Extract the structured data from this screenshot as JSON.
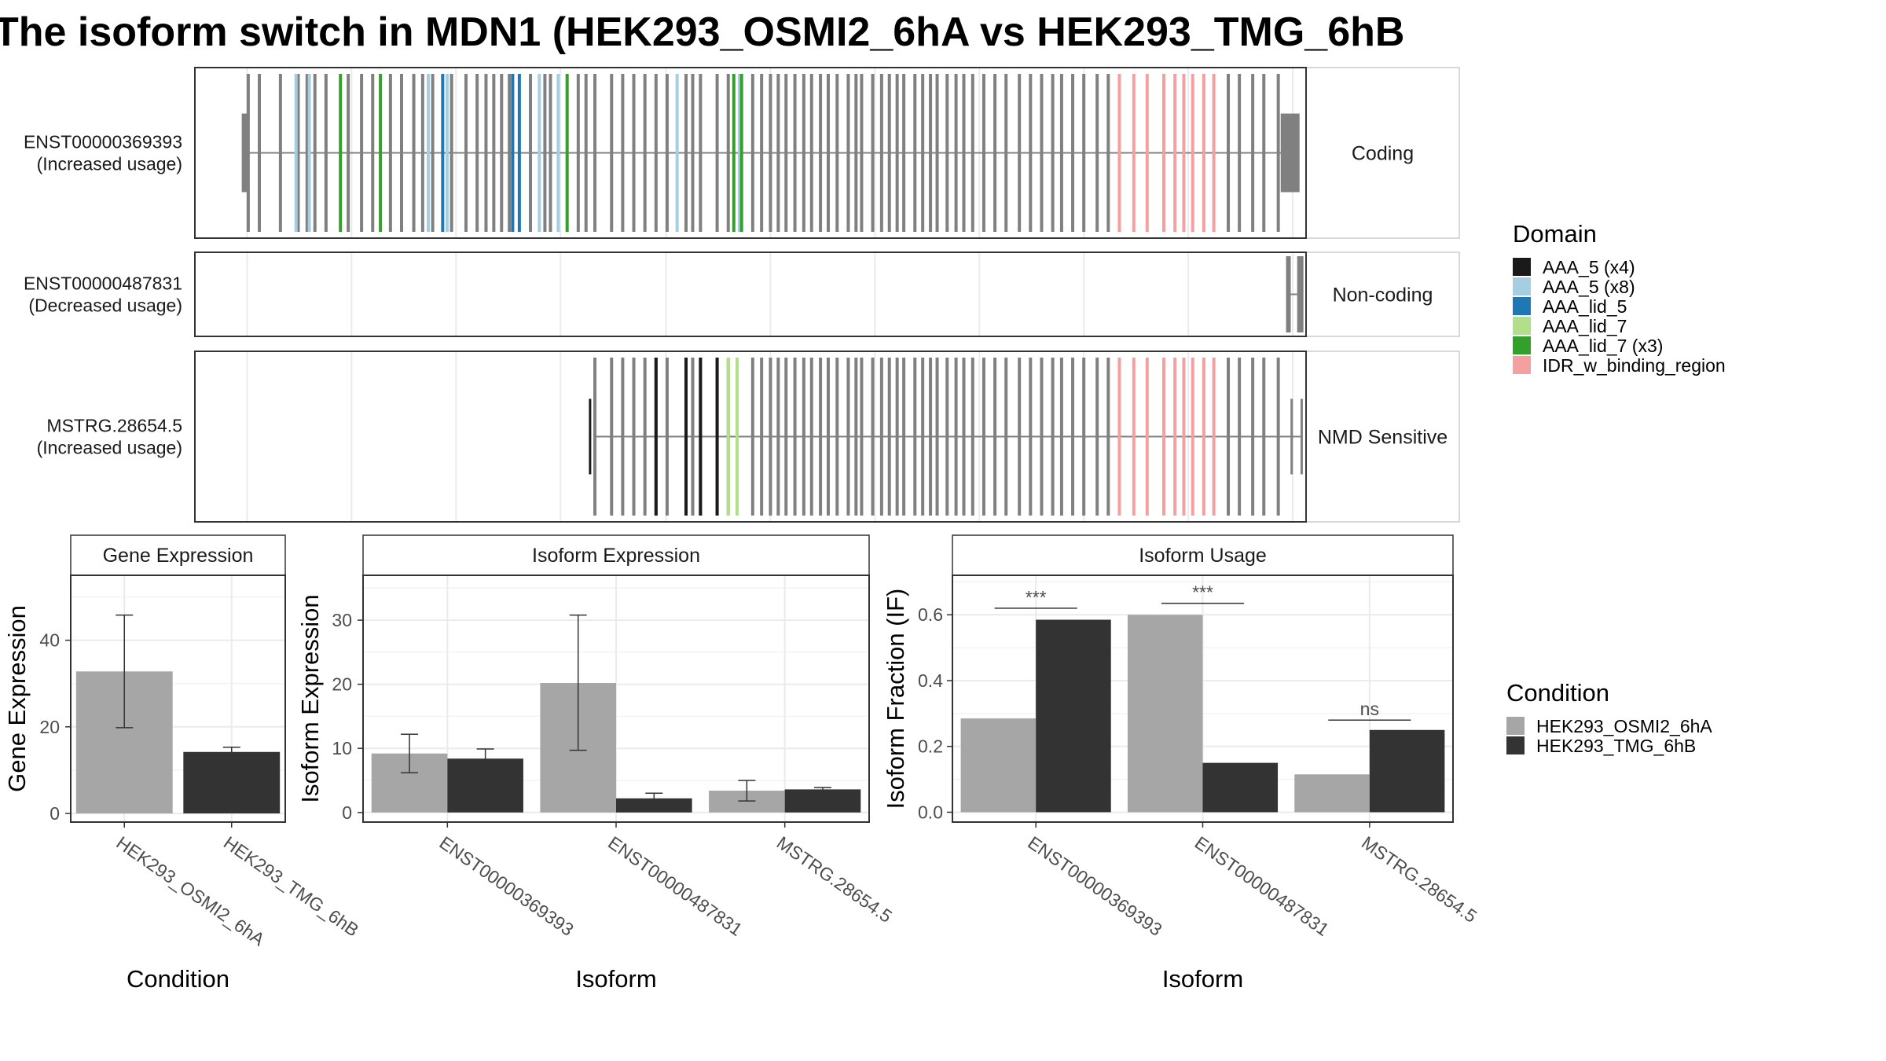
{
  "title": "The isoform switch in MDN1 (HEK293_OSMI2_6hA vs HEK293_TMG_6hB",
  "colors": {
    "exon": "#808080",
    "panel_border": "#333333",
    "grid": "#ebebeb",
    "condition_a": "#a6a6a6",
    "condition_b": "#333333",
    "AAA_5_x4": "#1a1a1a",
    "AAA_5_x8": "#a6cee3",
    "AAA_lid_5": "#1f78b4",
    "AAA_lid_7": "#b2df8a",
    "AAA_lid_7_x3": "#33a02c",
    "IDR_w_binding_region": "#f4a0a0"
  },
  "isoform_structures": [
    {
      "id": "ENST00000369393",
      "usage": "(Increased usage)",
      "class": "Coding",
      "domain_exons": {
        "AAA_5 (x8)": [
          0.091,
          0.103,
          0.21,
          0.227,
          0.31,
          0.327,
          0.434,
          0.49
        ],
        "AAA_lid_5": [
          0.223,
          0.286,
          0.292
        ],
        "AAA_lid_7 (x3)": [
          0.131,
          0.167,
          0.335,
          0.485,
          0.492
        ],
        "IDR_w_binding_region": [
          0.832,
          0.845,
          0.857,
          0.872,
          0.882,
          0.89,
          0.898,
          0.908,
          0.917
        ]
      }
    },
    {
      "id": "ENST00000487831",
      "usage": "(Decreased usage)",
      "class": "Non-coding"
    },
    {
      "id": "MSTRG.28654.5",
      "usage": "(Increased usage)",
      "class": "NMD Sensitive",
      "domain_exons": {
        "AAA_5 (x4)": [
          0.415,
          0.442,
          0.455,
          0.47
        ],
        "AAA_lid_7": [
          0.48,
          0.488
        ],
        "IDR_w_binding_region": [
          0.832,
          0.845,
          0.857,
          0.872,
          0.882,
          0.89,
          0.898,
          0.908,
          0.917
        ]
      }
    }
  ],
  "domain_legend": {
    "title": "Domain",
    "items": [
      {
        "label": "AAA_5 (x4)",
        "color": "#1a1a1a"
      },
      {
        "label": "AAA_5 (x8)",
        "color": "#a6cee3"
      },
      {
        "label": "AAA_lid_5",
        "color": "#1f78b4"
      },
      {
        "label": "AAA_lid_7",
        "color": "#b2df8a"
      },
      {
        "label": "AAA_lid_7 (x3)",
        "color": "#33a02c"
      },
      {
        "label": "IDR_w_binding_region",
        "color": "#f4a0a0"
      }
    ]
  },
  "condition_legend": {
    "title": "Condition",
    "items": [
      {
        "label": "HEK293_OSMI2_6hA",
        "color": "#a6a6a6"
      },
      {
        "label": "HEK293_TMG_6hB",
        "color": "#333333"
      }
    ]
  },
  "chart_data": [
    {
      "type": "bar",
      "strip": "Gene Expression",
      "xlabel": "Condition",
      "ylabel": "Gene Expression",
      "categories": [
        "HEK293_OSMI2_6hA",
        "HEK293_TMG_6hB"
      ],
      "values": [
        32.8,
        14.2
      ],
      "errors": [
        [
          19.8,
          45.8
        ],
        [
          13.2,
          15.3
        ]
      ],
      "ylim": [
        -2,
        55
      ],
      "yticks": [
        0,
        20,
        40
      ]
    },
    {
      "type": "bar",
      "strip": "Isoform Expression",
      "xlabel": "Isoform",
      "ylabel": "Isoform Expression",
      "categories": [
        "ENST00000369393",
        "ENST00000487831",
        "MSTRG.28654.5"
      ],
      "series": [
        {
          "name": "HEK293_OSMI2_6hA",
          "values": [
            9.2,
            20.2,
            3.4
          ],
          "errors": [
            [
              6.2,
              12.2
            ],
            [
              9.7,
              30.8
            ],
            [
              1.8,
              5.0
            ]
          ]
        },
        {
          "name": "HEK293_TMG_6hB",
          "values": [
            8.4,
            2.2,
            3.6
          ],
          "errors": [
            [
              6.9,
              9.9
            ],
            [
              1.5,
              3.0
            ],
            [
              3.2,
              3.9
            ]
          ]
        }
      ],
      "ylim": [
        -1.5,
        37
      ],
      "yticks": [
        0,
        10,
        20,
        30
      ]
    },
    {
      "type": "bar",
      "strip": "Isoform Usage",
      "xlabel": "Isoform",
      "ylabel": "Isoform Fraction (IF)",
      "categories": [
        "ENST00000369393",
        "ENST00000487831",
        "MSTRG.28654.5"
      ],
      "series": [
        {
          "name": "HEK293_OSMI2_6hA",
          "values": [
            0.285,
            0.6,
            0.115
          ]
        },
        {
          "name": "HEK293_TMG_6hB",
          "values": [
            0.585,
            0.15,
            0.25
          ]
        }
      ],
      "significance": [
        "***",
        "***",
        "ns"
      ],
      "significance_y": [
        0.62,
        0.635,
        0.28
      ],
      "ylim": [
        -0.03,
        0.72
      ],
      "yticks": [
        0.0,
        0.2,
        0.4,
        0.6
      ],
      "ytick_labels": [
        "0.0",
        "0.2",
        "0.4",
        "0.6"
      ]
    }
  ]
}
